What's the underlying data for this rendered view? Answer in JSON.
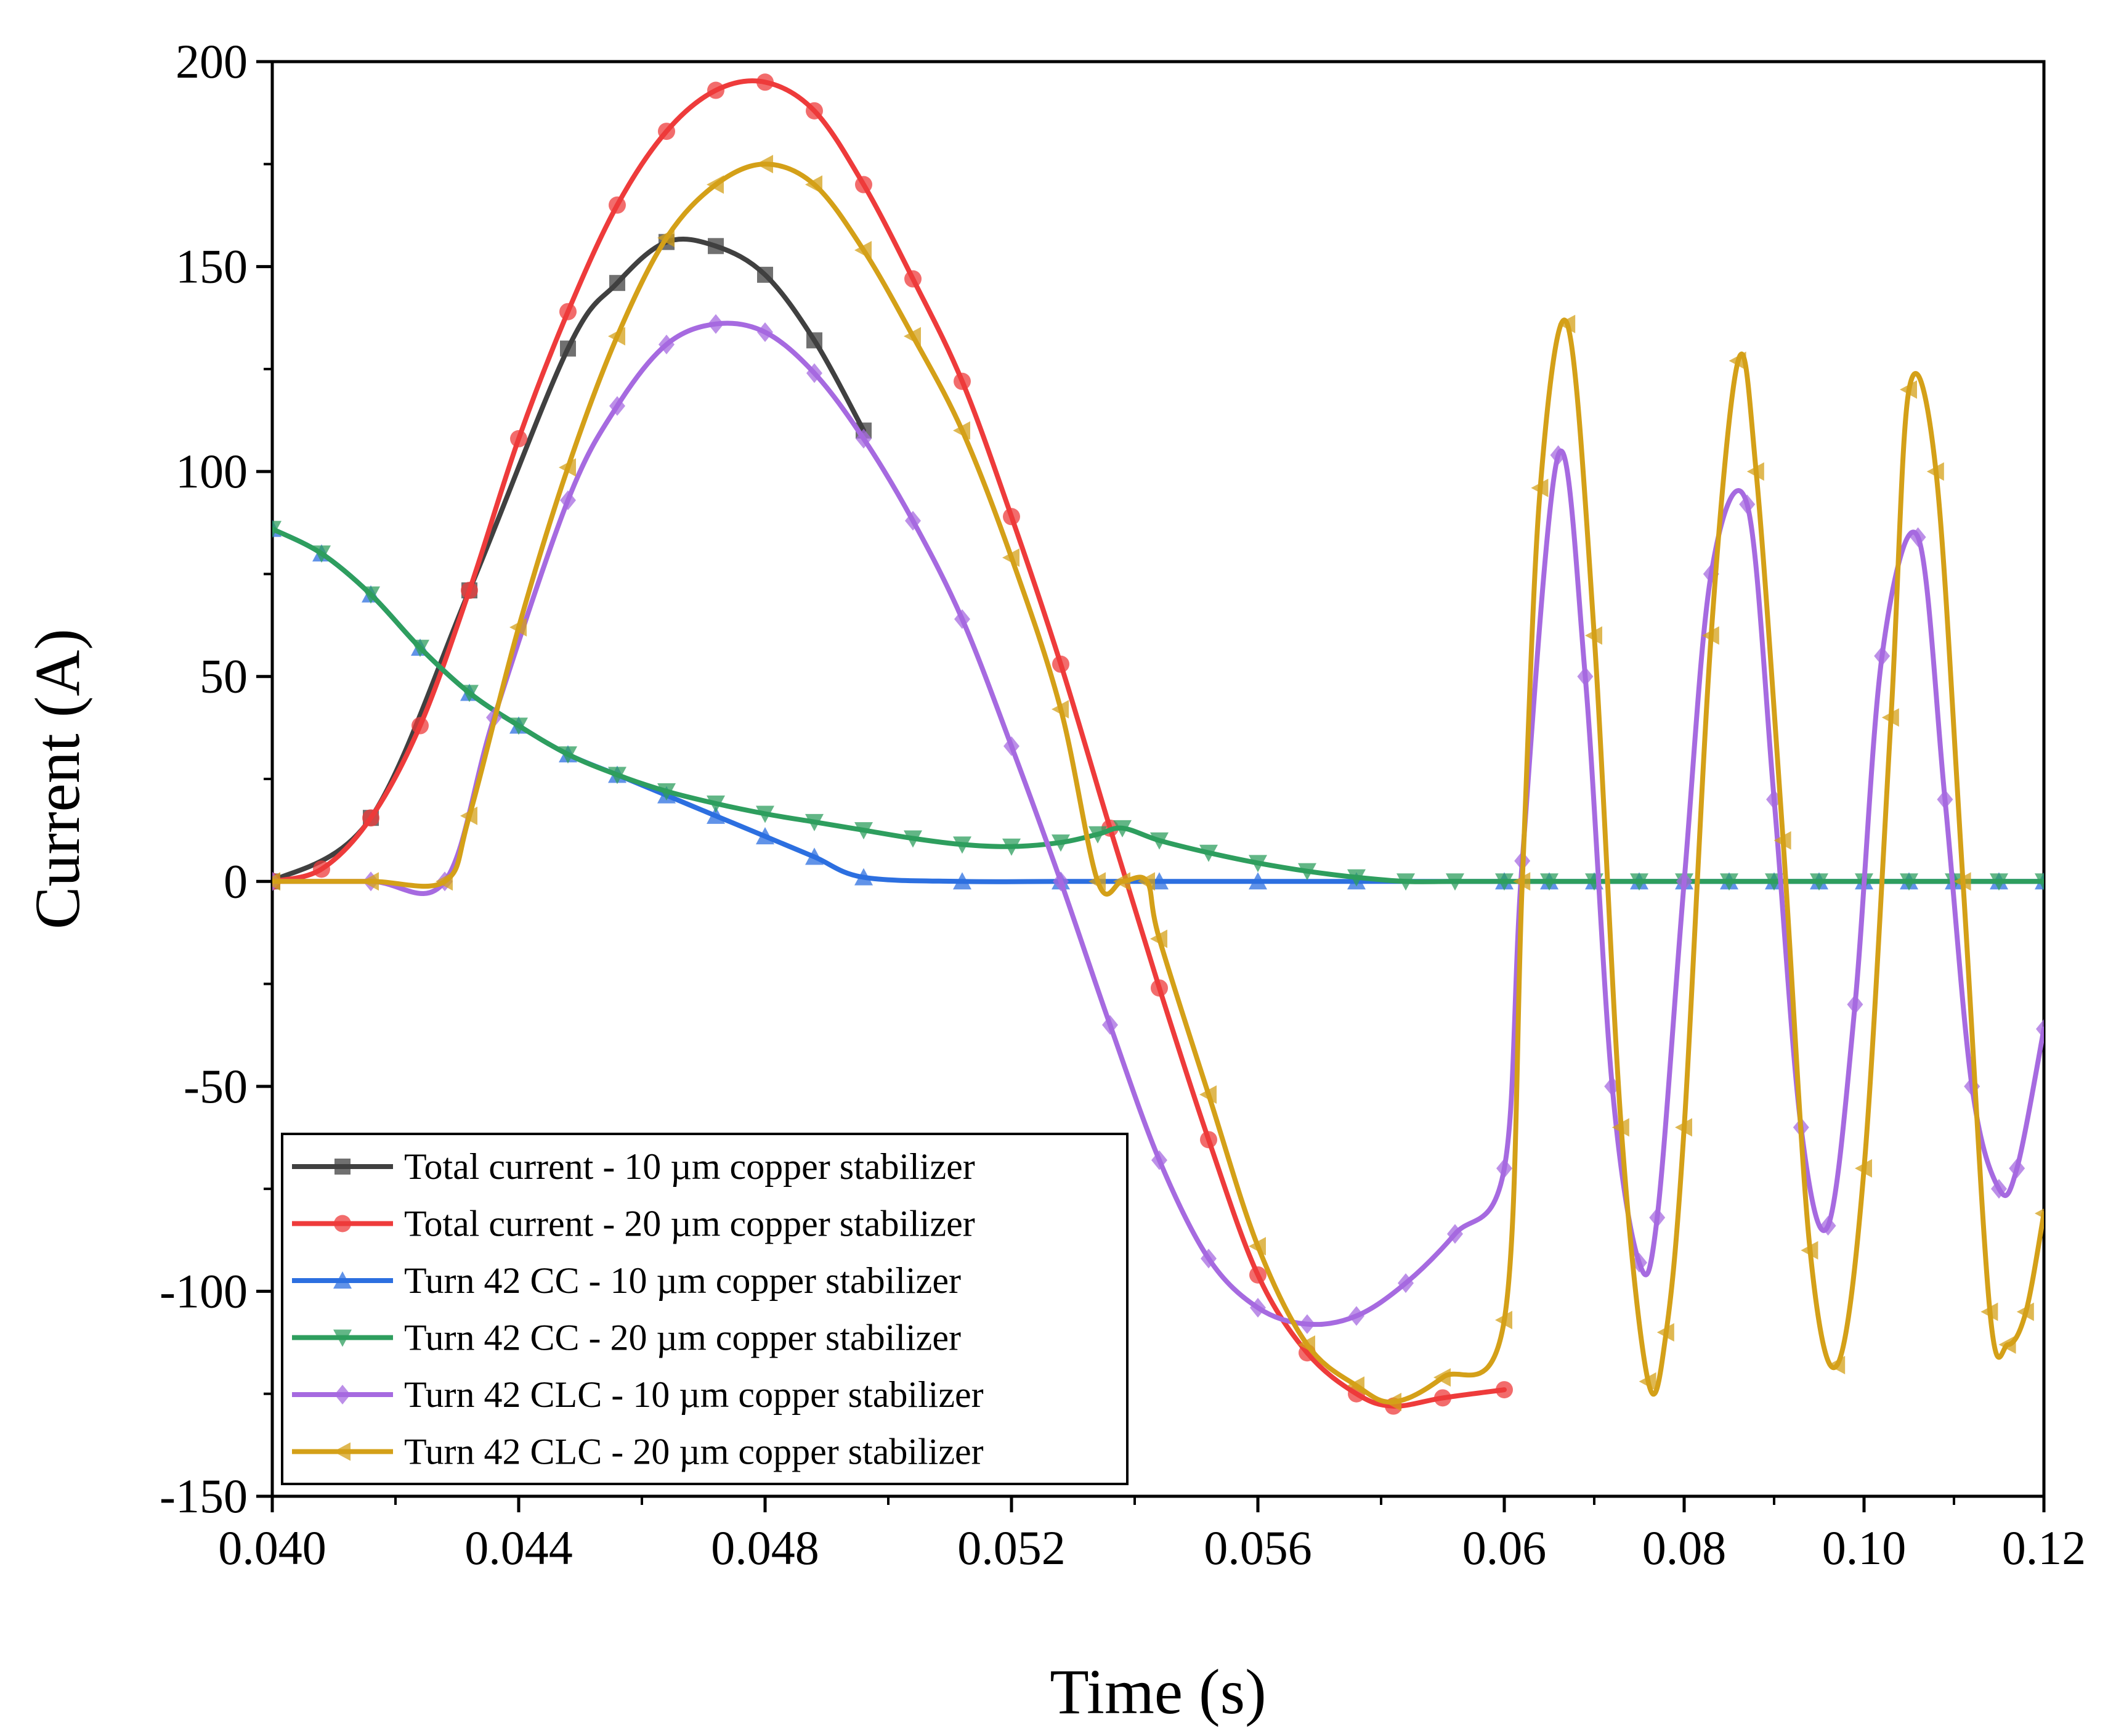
{
  "chart_data": {
    "type": "line",
    "xlabel": "Time (s)",
    "ylabel": "Current (A)",
    "ylim": [
      -150,
      200
    ],
    "y_ticks": [
      "200",
      "150",
      "100",
      "50",
      "0",
      "-50",
      "-100",
      "-150"
    ],
    "y_tick_values": [
      200,
      150,
      100,
      50,
      0,
      -50,
      -100,
      -150
    ],
    "x_axis_note": "broken scale: 0.040-0.060 s linear segment, then 0.06-0.12 s compressed segment",
    "x_ticks": [
      "0.040",
      "0.044",
      "0.048",
      "0.052",
      "0.056",
      "0.06",
      "0.08",
      "0.10",
      "0.12"
    ],
    "x_tick_values": [
      0.04,
      0.044,
      0.048,
      0.052,
      0.056,
      0.06,
      0.08,
      0.1,
      0.12
    ],
    "legend_position": "bottom-left",
    "series": [
      {
        "name": "Total current - 10 µm copper stabilizer",
        "color": "#404040",
        "marker": "square",
        "x": [
          0.04,
          0.0416,
          0.0432,
          0.0448,
          0.0456,
          0.0464,
          0.0472,
          0.048,
          0.0488,
          0.0496
        ],
        "y": [
          0,
          15.5,
          71,
          130,
          146,
          156,
          155,
          148,
          132,
          110
        ]
      },
      {
        "name": "Total current - 20 µm copper stabilizer",
        "color": "#ee3b3b",
        "marker": "circle",
        "x": [
          0.04,
          0.0408,
          0.0416,
          0.0424,
          0.0432,
          0.044,
          0.0448,
          0.0456,
          0.0464,
          0.0472,
          0.048,
          0.0488,
          0.0496,
          0.0504,
          0.0512,
          0.052,
          0.0528,
          0.0536,
          0.0544,
          0.0552,
          0.056,
          0.0568,
          0.0576,
          0.0582,
          0.059,
          0.06
        ],
        "y": [
          0,
          3,
          15.5,
          38,
          71,
          108,
          139,
          165,
          183,
          193,
          195,
          188,
          170,
          147,
          122,
          89,
          53,
          13,
          -26,
          -63,
          -96,
          -115,
          -125,
          -128,
          -126,
          -124
        ]
      },
      {
        "name": "Turn 42 CC - 10 µm copper stabilizer",
        "color": "#2c6fe0",
        "marker": "triangle-up",
        "x": [
          0.04,
          0.0408,
          0.0416,
          0.0424,
          0.0432,
          0.044,
          0.0448,
          0.0456,
          0.0464,
          0.0472,
          0.048,
          0.0488,
          0.0496,
          0.0512,
          0.0528,
          0.0544,
          0.056,
          0.0576,
          0.06,
          0.065,
          0.07,
          0.075,
          0.08,
          0.085,
          0.09,
          0.095,
          0.1,
          0.105,
          0.11,
          0.115,
          0.12
        ],
        "y": [
          86,
          80,
          70,
          57,
          46,
          38,
          31,
          26,
          21,
          16,
          11,
          6,
          1,
          0,
          0,
          0,
          0,
          0,
          0,
          0,
          0,
          0,
          0,
          0,
          0,
          0,
          0,
          0,
          0,
          0,
          0
        ]
      },
      {
        "name": "Turn 42 CC - 20 µm copper stabilizer",
        "color": "#2e9e5e",
        "marker": "triangle-down",
        "x": [
          0.04,
          0.0408,
          0.0416,
          0.0424,
          0.0432,
          0.044,
          0.0448,
          0.0456,
          0.0464,
          0.0472,
          0.048,
          0.0488,
          0.0496,
          0.0504,
          0.0512,
          0.052,
          0.0528,
          0.0534,
          0.0538,
          0.0544,
          0.0552,
          0.056,
          0.0568,
          0.0576,
          0.0584,
          0.0592,
          0.06,
          0.065,
          0.07,
          0.075,
          0.08,
          0.085,
          0.09,
          0.095,
          0.1,
          0.105,
          0.11,
          0.115,
          0.12
        ],
        "y": [
          86,
          80,
          70,
          57,
          46,
          38,
          31,
          26,
          22,
          19,
          16.5,
          14.5,
          12.5,
          10.5,
          9,
          8.5,
          9.5,
          11.5,
          13,
          10,
          7,
          4.5,
          2.5,
          1,
          0,
          0,
          0,
          0,
          0,
          0,
          0,
          0,
          0,
          0,
          0,
          0,
          0,
          0,
          0
        ]
      },
      {
        "name": "Turn 42 CLC - 10 µm copper stabilizer",
        "color": "#a66ae0",
        "marker": "diamond",
        "x": [
          0.04,
          0.0416,
          0.0428,
          0.0436,
          0.0448,
          0.0456,
          0.0464,
          0.0472,
          0.048,
          0.0488,
          0.0496,
          0.0504,
          0.0512,
          0.052,
          0.0528,
          0.0536,
          0.0544,
          0.0552,
          0.056,
          0.0568,
          0.0576,
          0.0584,
          0.0592,
          0.06,
          0.062,
          0.066,
          0.069,
          0.072,
          0.075,
          0.077,
          0.08,
          0.083,
          0.087,
          0.09,
          0.093,
          0.096,
          0.099,
          0.102,
          0.106,
          0.109,
          0.112,
          0.115,
          0.117,
          0.12
        ],
        "y": [
          0,
          0,
          0,
          40,
          93,
          116,
          131,
          136,
          134,
          124,
          108,
          88,
          64,
          33,
          0,
          -35,
          -68,
          -92,
          -104,
          -108,
          -106,
          -98,
          -86,
          -70,
          5,
          104,
          50,
          -50,
          -93,
          -82,
          0,
          75,
          92,
          20,
          -60,
          -84,
          -30,
          55,
          84,
          20,
          -50,
          -75,
          -70,
          -36
        ]
      },
      {
        "name": "Turn 42 CLC - 20 µm copper stabilizer",
        "color": "#d4a018",
        "marker": "triangle-left",
        "x": [
          0.04,
          0.0416,
          0.0428,
          0.0432,
          0.044,
          0.0448,
          0.0456,
          0.0464,
          0.0472,
          0.048,
          0.0488,
          0.0496,
          0.0504,
          0.0512,
          0.052,
          0.0528,
          0.0534,
          0.0538,
          0.0542,
          0.0544,
          0.0552,
          0.056,
          0.0568,
          0.0576,
          0.0582,
          0.059,
          0.06,
          0.062,
          0.064,
          0.067,
          0.07,
          0.073,
          0.076,
          0.078,
          0.08,
          0.083,
          0.086,
          0.088,
          0.091,
          0.094,
          0.097,
          0.1,
          0.103,
          0.105,
          0.108,
          0.111,
          0.114,
          0.116,
          0.118,
          0.12
        ],
        "y": [
          0,
          0,
          0,
          16,
          62,
          101,
          133,
          157,
          170,
          175,
          170,
          154,
          133,
          110,
          79,
          42,
          0,
          0,
          0,
          -14,
          -52,
          -89,
          -113,
          -123,
          -127,
          -121,
          -107,
          0,
          96,
          136,
          60,
          -60,
          -122,
          -110,
          -60,
          60,
          127,
          100,
          10,
          -90,
          -118,
          -70,
          40,
          120,
          100,
          0,
          -105,
          -113,
          -105,
          -81
        ]
      }
    ]
  }
}
